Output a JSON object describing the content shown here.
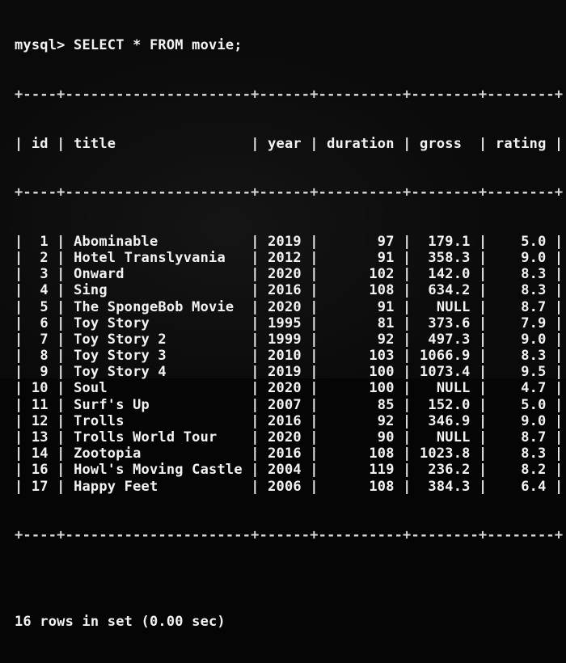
{
  "prompt": "mysql>",
  "command": "SELECT * FROM movie;",
  "columns": [
    "id",
    "title",
    "year",
    "duration",
    "gross",
    "rating"
  ],
  "rows": [
    [
      "1",
      "Abominable",
      "2019",
      "97",
      "179.1",
      "5.0"
    ],
    [
      "2",
      "Hotel Translyvania",
      "2012",
      "91",
      "358.3",
      "9.0"
    ],
    [
      "3",
      "Onward",
      "2020",
      "102",
      "142.0",
      "8.3"
    ],
    [
      "4",
      "Sing",
      "2016",
      "108",
      "634.2",
      "8.3"
    ],
    [
      "5",
      "The SpongeBob Movie",
      "2020",
      "91",
      "NULL",
      "8.7"
    ],
    [
      "6",
      "Toy Story",
      "1995",
      "81",
      "373.6",
      "7.9"
    ],
    [
      "7",
      "Toy Story 2",
      "1999",
      "92",
      "497.3",
      "9.0"
    ],
    [
      "8",
      "Toy Story 3",
      "2010",
      "103",
      "1066.9",
      "8.3"
    ],
    [
      "9",
      "Toy Story 4",
      "2019",
      "100",
      "1073.4",
      "9.5"
    ],
    [
      "10",
      "Soul",
      "2020",
      "100",
      "NULL",
      "4.7"
    ],
    [
      "11",
      "Surf's Up",
      "2007",
      "85",
      "152.0",
      "5.0"
    ],
    [
      "12",
      "Trolls",
      "2016",
      "92",
      "346.9",
      "9.0"
    ],
    [
      "13",
      "Trolls World Tour",
      "2020",
      "90",
      "NULL",
      "8.7"
    ],
    [
      "14",
      "Zootopia",
      "2016",
      "108",
      "1023.8",
      "8.3"
    ],
    [
      "16",
      "Howl's Moving Castle",
      "2004",
      "119",
      "236.2",
      "8.2"
    ],
    [
      "17",
      "Happy Feet",
      "2006",
      "108",
      "384.3",
      "6.4"
    ]
  ],
  "footer": "16 rows in set (0.00 sec)"
}
